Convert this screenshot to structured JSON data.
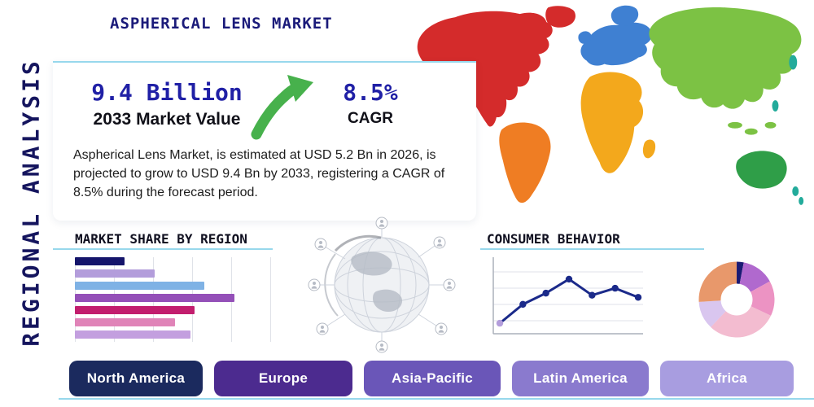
{
  "page": {
    "title": "ASPHERICAL LENS MARKET",
    "side_label": "REGIONAL ANALYSIS"
  },
  "stats": {
    "value": "9.4 Billion",
    "value_caption": "2033 Market Value",
    "cagr": "8.5%",
    "cagr_caption": "CAGR",
    "description": "Aspherical Lens Market, is estimated at USD 5.2 Bn in 2026, is projected to grow to USD 9.4 Bn by 2033, registering a CAGR of 8.5% during the forecast period."
  },
  "sections": {
    "market_share_title": "MARKET SHARE BY REGION",
    "consumer_behavior_title": "CONSUMER BEHAVIOR"
  },
  "region_buttons": [
    {
      "label": "North America",
      "color": "#1b2a5e"
    },
    {
      "label": "Europe",
      "color": "#4c2b8f"
    },
    {
      "label": "Asia-Pacific",
      "color": "#6a56b8"
    },
    {
      "label": "Latin America",
      "color": "#8a7ace"
    },
    {
      "label": "Africa",
      "color": "#a89de0"
    }
  ],
  "colors": {
    "accent_line": "#97d8ec",
    "navy": "#15155e",
    "stat_blue": "#2020a6",
    "arrow_green": "#47b14c",
    "map": {
      "north_america": "#d42b2b",
      "south_america": "#ef7d23",
      "europe": "#3f80d2",
      "africa": "#f3a81c",
      "asia": "#7cc244",
      "australia": "#2f9e48",
      "islands": "#23ab9b"
    }
  },
  "chart_data": [
    {
      "type": "bar",
      "title": "MARKET SHARE BY REGION",
      "orientation": "horizontal",
      "values": [
        25,
        40,
        65,
        80,
        60,
        50,
        58
      ],
      "colors": [
        "#15156b",
        "#b39ddb",
        "#7fb2e5",
        "#9450b8",
        "#c21e6e",
        "#e084b8",
        "#c39fdf"
      ],
      "xlim": [
        0,
        100
      ],
      "grid": true,
      "legend": "none"
    },
    {
      "type": "line",
      "title": "CONSUMER BEHAVIOR",
      "x": [
        1,
        2,
        3,
        4,
        5,
        6,
        7
      ],
      "values": [
        15,
        42,
        58,
        78,
        55,
        65,
        52
      ],
      "ylim": [
        0,
        100
      ],
      "line_color": "#1b2a8a",
      "first_point_color": "#b39ddb",
      "grid": true,
      "legend": "none"
    },
    {
      "type": "pie",
      "title": "",
      "donut": true,
      "slices": [
        {
          "value": 3,
          "color": "#1b1b74"
        },
        {
          "value": 14,
          "color": "#b069ce"
        },
        {
          "value": 15,
          "color": "#ec93c3"
        },
        {
          "value": 30,
          "color": "#f3bcd0"
        },
        {
          "value": 12,
          "color": "#d9c6ef"
        },
        {
          "value": 26,
          "color": "#e8986b"
        }
      ]
    }
  ]
}
